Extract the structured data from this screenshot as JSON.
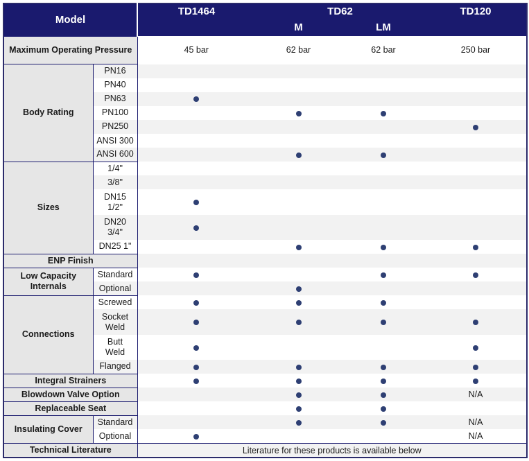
{
  "header": {
    "model": "Model",
    "td1464": "TD1464",
    "td62": "TD62",
    "td62_m": "M",
    "td62_lm": "LM",
    "td120": "TD120"
  },
  "pressure": {
    "label": "Maximum Operating Pressure",
    "values": [
      "45 bar",
      "62 bar",
      "62 bar",
      "250 bar"
    ]
  },
  "sections": {
    "body_rating": "Body Rating",
    "sizes": "Sizes",
    "enp": "ENP Finish",
    "low_cap": "Low Capacity Internals",
    "connections": "Connections",
    "strainers": "Integral Strainers",
    "blowdown": "Blowdown Valve Option",
    "seat": "Replaceable Seat",
    "cover": "Insulating Cover",
    "literature": "Technical Literature"
  },
  "rows": {
    "pn16": "PN16",
    "pn40": "PN40",
    "pn63": "PN63",
    "pn100": "PN100",
    "pn250": "PN250",
    "ansi300": "ANSI 300",
    "ansi600": "ANSI 600",
    "s14": "1/4\"",
    "s38": "3/8\"",
    "dn15": "DN15",
    "s12": "1/2\"",
    "dn20": "DN20",
    "s34": "3/4\"",
    "dn25": "DN25 1\"",
    "standard": "Standard",
    "optional": "Optional",
    "screwed": "Screwed",
    "socket": "Socket",
    "weld": "Weld",
    "butt": "Butt",
    "flanged": "Flanged"
  },
  "na": "N/A",
  "literature_note": "Literature for these products is available below",
  "colors": {
    "header_bg": "#1a1a6e",
    "dot": "#2e3f73",
    "stripe": "#f2f2f2"
  }
}
